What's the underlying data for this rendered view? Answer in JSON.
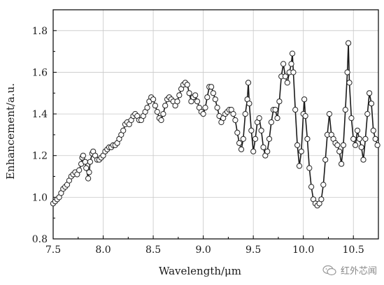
{
  "chart_data": {
    "type": "line",
    "xlabel": "Wavelength/μm",
    "ylabel": "Enhancement/a.u.",
    "xlim": [
      7.5,
      10.75
    ],
    "ylim": [
      0.8,
      1.9
    ],
    "x_ticks": [
      "7.5",
      "8.0",
      "8.5",
      "9.0",
      "9.5",
      "10.0",
      "10.5"
    ],
    "y_ticks": [
      "0.8",
      "1.0",
      "1.2",
      "1.4",
      "1.6",
      "1.8"
    ],
    "grid": true,
    "marker": "open-circle",
    "line_color": "#1a1a1a",
    "series": [
      {
        "points": [
          [
            7.5,
            0.97
          ],
          [
            7.52,
            0.98
          ],
          [
            7.54,
            0.99
          ],
          [
            7.56,
            1.0
          ],
          [
            7.58,
            1.02
          ],
          [
            7.6,
            1.04
          ],
          [
            7.62,
            1.05
          ],
          [
            7.64,
            1.06
          ],
          [
            7.66,
            1.08
          ],
          [
            7.68,
            1.1
          ],
          [
            7.7,
            1.11
          ],
          [
            7.72,
            1.12
          ],
          [
            7.74,
            1.11
          ],
          [
            7.76,
            1.13
          ],
          [
            7.78,
            1.16
          ],
          [
            7.79,
            1.19
          ],
          [
            7.8,
            1.2
          ],
          [
            7.82,
            1.17
          ],
          [
            7.83,
            1.14
          ],
          [
            7.85,
            1.09
          ],
          [
            7.86,
            1.12
          ],
          [
            7.87,
            1.17
          ],
          [
            7.89,
            1.21
          ],
          [
            7.9,
            1.22
          ],
          [
            7.92,
            1.2
          ],
          [
            7.94,
            1.18
          ],
          [
            7.96,
            1.18
          ],
          [
            7.98,
            1.19
          ],
          [
            8.0,
            1.2
          ],
          [
            8.02,
            1.22
          ],
          [
            8.04,
            1.23
          ],
          [
            8.06,
            1.24
          ],
          [
            8.08,
            1.24
          ],
          [
            8.1,
            1.25
          ],
          [
            8.12,
            1.25
          ],
          [
            8.14,
            1.26
          ],
          [
            8.16,
            1.28
          ],
          [
            8.18,
            1.3
          ],
          [
            8.2,
            1.32
          ],
          [
            8.22,
            1.35
          ],
          [
            8.24,
            1.36
          ],
          [
            8.26,
            1.35
          ],
          [
            8.28,
            1.37
          ],
          [
            8.3,
            1.39
          ],
          [
            8.32,
            1.4
          ],
          [
            8.34,
            1.39
          ],
          [
            8.36,
            1.37
          ],
          [
            8.38,
            1.37
          ],
          [
            8.4,
            1.39
          ],
          [
            8.42,
            1.41
          ],
          [
            8.44,
            1.43
          ],
          [
            8.46,
            1.46
          ],
          [
            8.48,
            1.48
          ],
          [
            8.5,
            1.47
          ],
          [
            8.52,
            1.44
          ],
          [
            8.54,
            1.41
          ],
          [
            8.56,
            1.38
          ],
          [
            8.58,
            1.37
          ],
          [
            8.6,
            1.4
          ],
          [
            8.62,
            1.44
          ],
          [
            8.64,
            1.47
          ],
          [
            8.66,
            1.48
          ],
          [
            8.68,
            1.47
          ],
          [
            8.7,
            1.46
          ],
          [
            8.72,
            1.44
          ],
          [
            8.74,
            1.46
          ],
          [
            8.76,
            1.49
          ],
          [
            8.78,
            1.52
          ],
          [
            8.8,
            1.54
          ],
          [
            8.82,
            1.55
          ],
          [
            8.84,
            1.54
          ],
          [
            8.86,
            1.5
          ],
          [
            8.88,
            1.46
          ],
          [
            8.9,
            1.48
          ],
          [
            8.92,
            1.49
          ],
          [
            8.94,
            1.46
          ],
          [
            8.96,
            1.43
          ],
          [
            8.98,
            1.41
          ],
          [
            9.0,
            1.4
          ],
          [
            9.02,
            1.43
          ],
          [
            9.04,
            1.48
          ],
          [
            9.06,
            1.53
          ],
          [
            9.08,
            1.53
          ],
          [
            9.1,
            1.5
          ],
          [
            9.12,
            1.47
          ],
          [
            9.14,
            1.43
          ],
          [
            9.16,
            1.39
          ],
          [
            9.18,
            1.36
          ],
          [
            9.2,
            1.38
          ],
          [
            9.22,
            1.4
          ],
          [
            9.24,
            1.41
          ],
          [
            9.26,
            1.42
          ],
          [
            9.28,
            1.42
          ],
          [
            9.3,
            1.4
          ],
          [
            9.32,
            1.37
          ],
          [
            9.34,
            1.31
          ],
          [
            9.36,
            1.26
          ],
          [
            9.38,
            1.23
          ],
          [
            9.4,
            1.28
          ],
          [
            9.42,
            1.4
          ],
          [
            9.44,
            1.47
          ],
          [
            9.45,
            1.55
          ],
          [
            9.46,
            1.45
          ],
          [
            9.48,
            1.32
          ],
          [
            9.5,
            1.22
          ],
          [
            9.52,
            1.28
          ],
          [
            9.54,
            1.36
          ],
          [
            9.56,
            1.38
          ],
          [
            9.58,
            1.32
          ],
          [
            9.6,
            1.24
          ],
          [
            9.62,
            1.2
          ],
          [
            9.64,
            1.22
          ],
          [
            9.66,
            1.28
          ],
          [
            9.68,
            1.36
          ],
          [
            9.7,
            1.42
          ],
          [
            9.72,
            1.42
          ],
          [
            9.74,
            1.38
          ],
          [
            9.76,
            1.46
          ],
          [
            9.78,
            1.58
          ],
          [
            9.8,
            1.64
          ],
          [
            9.82,
            1.58
          ],
          [
            9.84,
            1.55
          ],
          [
            9.86,
            1.6
          ],
          [
            9.88,
            1.64
          ],
          [
            9.89,
            1.69
          ],
          [
            9.9,
            1.6
          ],
          [
            9.92,
            1.42
          ],
          [
            9.94,
            1.25
          ],
          [
            9.96,
            1.15
          ],
          [
            9.98,
            1.22
          ],
          [
            10.0,
            1.4
          ],
          [
            10.01,
            1.47
          ],
          [
            10.02,
            1.39
          ],
          [
            10.04,
            1.28
          ],
          [
            10.06,
            1.14
          ],
          [
            10.08,
            1.05
          ],
          [
            10.1,
            0.99
          ],
          [
            10.12,
            0.97
          ],
          [
            10.14,
            0.96
          ],
          [
            10.16,
            0.97
          ],
          [
            10.18,
            0.99
          ],
          [
            10.2,
            1.06
          ],
          [
            10.22,
            1.18
          ],
          [
            10.24,
            1.3
          ],
          [
            10.26,
            1.4
          ],
          [
            10.28,
            1.3
          ],
          [
            10.3,
            1.28
          ],
          [
            10.32,
            1.26
          ],
          [
            10.34,
            1.25
          ],
          [
            10.36,
            1.22
          ],
          [
            10.38,
            1.16
          ],
          [
            10.4,
            1.25
          ],
          [
            10.42,
            1.42
          ],
          [
            10.44,
            1.6
          ],
          [
            10.45,
            1.74
          ],
          [
            10.46,
            1.55
          ],
          [
            10.48,
            1.38
          ],
          [
            10.5,
            1.28
          ],
          [
            10.52,
            1.25
          ],
          [
            10.54,
            1.32
          ],
          [
            10.56,
            1.28
          ],
          [
            10.58,
            1.24
          ],
          [
            10.6,
            1.18
          ],
          [
            10.62,
            1.28
          ],
          [
            10.64,
            1.4
          ],
          [
            10.66,
            1.5
          ],
          [
            10.68,
            1.45
          ],
          [
            10.7,
            1.32
          ],
          [
            10.72,
            1.28
          ],
          [
            10.74,
            1.25
          ]
        ]
      }
    ]
  },
  "watermark": {
    "text": "红外芯闻",
    "icon": "wechat-icon"
  }
}
